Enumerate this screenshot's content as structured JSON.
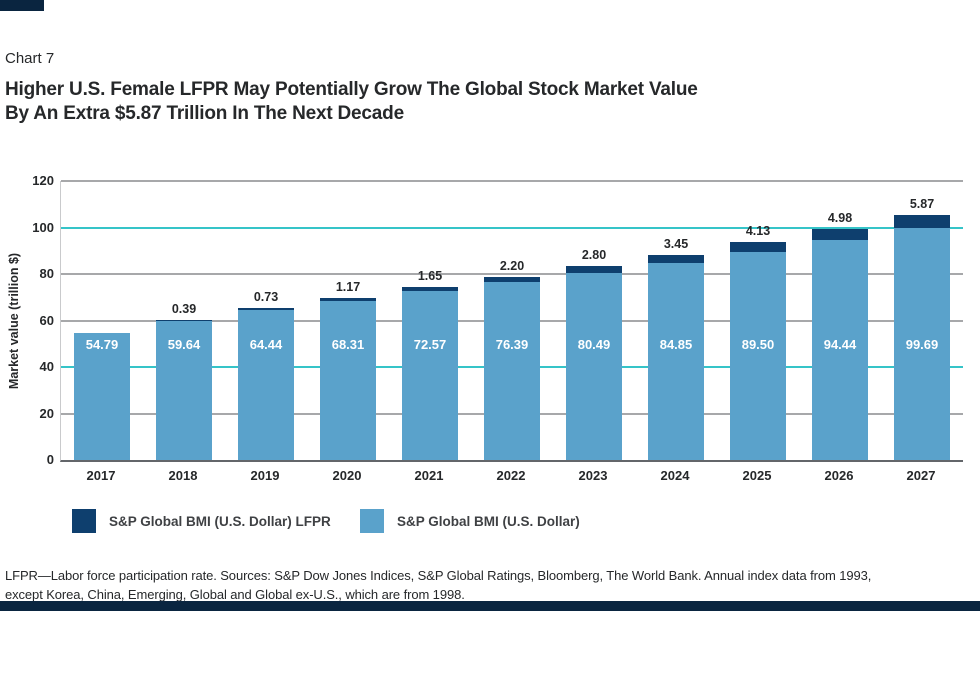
{
  "page": {
    "chart_label": "Chart 7",
    "title_line1": "Higher U.S. Female LFPR May Potentially Grow The Global Stock Market Value",
    "title_line2": "By An Extra $5.87 Trillion In The Next Decade",
    "footnote_line1": "LFPR—Labor force participation rate. Sources: S&P Dow Jones Indices, S&P Global Ratings, Bloomberg, The World Bank. Annual index data from 1993,",
    "footnote_line2": "except Korea, China, Emerging, Global and Global ex-U.S., which are from 1998."
  },
  "legend": [
    {
      "label": "S&P Global BMI (U.S. Dollar) LFPR",
      "color": "#0e3f6e"
    },
    {
      "label": "S&P Global BMI (U.S. Dollar)",
      "color": "#5aa2cb"
    }
  ],
  "colors": {
    "bar_light": "#5aa2cb",
    "bar_dark": "#0e3f6e",
    "grid_gray": "#a7a8aa",
    "grid_teal": "#35c4c8",
    "axis": "#63666a",
    "accent_navy": "#0a2540"
  },
  "chart_data": {
    "type": "bar",
    "stacked": true,
    "title": "Higher U.S. Female LFPR May Potentially Grow The Global Stock Market Value By An Extra $5.87 Trillion In The Next Decade",
    "categories": [
      "2017",
      "2018",
      "2019",
      "2020",
      "2021",
      "2022",
      "2023",
      "2024",
      "2025",
      "2026",
      "2027"
    ],
    "series": [
      {
        "name": "S&P Global BMI (U.S. Dollar)",
        "color": "#5aa2cb",
        "values": [
          54.79,
          59.64,
          64.44,
          68.31,
          72.57,
          76.39,
          80.49,
          84.85,
          89.5,
          94.44,
          99.69
        ]
      },
      {
        "name": "S&P Global BMI (U.S. Dollar) LFPR",
        "color": "#0e3f6e",
        "values": [
          0,
          0.39,
          0.73,
          1.17,
          1.65,
          2.2,
          2.8,
          3.45,
          4.13,
          4.98,
          5.87
        ]
      }
    ],
    "xlabel": "",
    "ylabel": "Market value (trillion $)",
    "ylim": [
      0,
      120
    ],
    "yticks": [
      0,
      20,
      40,
      60,
      80,
      100,
      120
    ],
    "teal_gridlines": [
      40,
      100
    ],
    "grid": true,
    "legend_position": "bottom"
  }
}
